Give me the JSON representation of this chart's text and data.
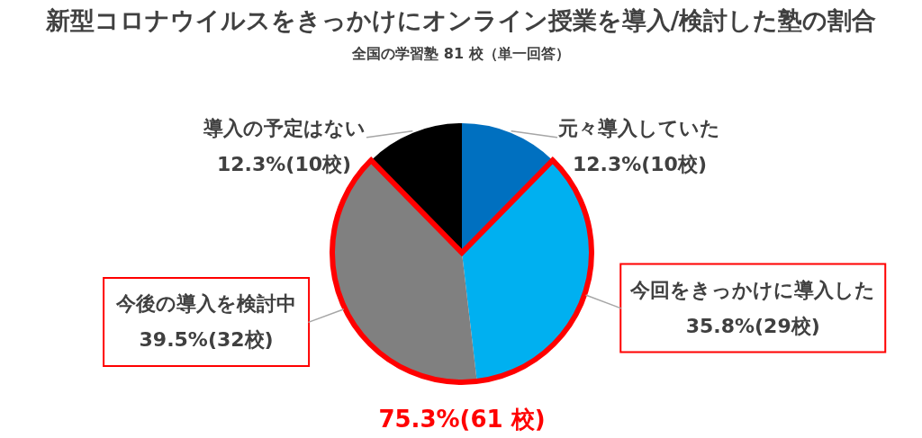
{
  "chart_data": {
    "type": "pie",
    "title": "新型コロナウイルスをきっかけにオンライン授業を導入/検討した塾の割合",
    "subtitle": "全国の学習塾 81 校（単一回答）",
    "categories": [
      "元々導入していた",
      "今回をきっかけに導入した",
      "今後の導入を検討中",
      "導入の予定はない"
    ],
    "values": [
      10,
      29,
      32,
      10
    ],
    "colors": [
      "#0070c0",
      "#00b0f0",
      "#808080",
      "#000000"
    ],
    "value_labels": [
      "12.3%(10校)",
      "35.8%(29校)",
      "39.5%(32校)",
      "12.3%(10校)"
    ],
    "annotations": [
      "75.3%(61 校)"
    ]
  }
}
